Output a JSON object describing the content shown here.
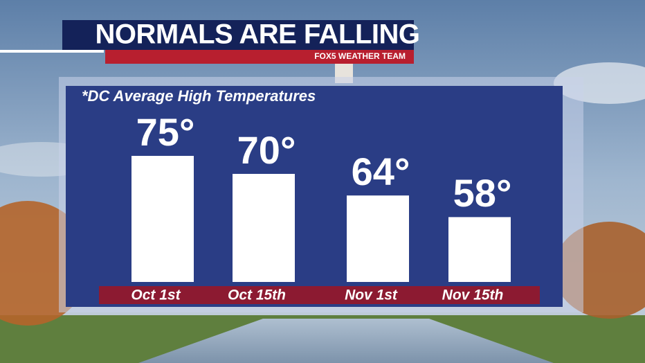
{
  "chart_data": {
    "type": "bar",
    "title": "NORMALS ARE FALLING",
    "brand": "FOX5 WEATHER TEAM",
    "subtitle": "*DC Average High Temperatures",
    "categories": [
      "Oct 1st",
      "Oct 15th",
      "Nov 1st",
      "Nov 15th"
    ],
    "values": [
      75,
      70,
      64,
      58
    ],
    "value_labels": [
      "75°",
      "70°",
      "64°",
      "58°"
    ],
    "color": "#ffffff",
    "ylim": [
      40,
      80
    ]
  }
}
